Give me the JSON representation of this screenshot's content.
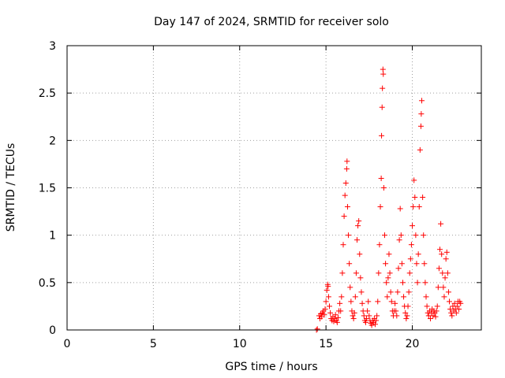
{
  "chart_data": {
    "type": "scatter",
    "title": "Day 147 of 2024, SRMTID for receiver solo",
    "xlabel": "GPS time / hours",
    "ylabel": "SRMTID / TECUs",
    "xlim": [
      0,
      24
    ],
    "ylim": [
      0,
      3
    ],
    "xticks": [
      0,
      5,
      10,
      15,
      20
    ],
    "xtick_labels": [
      "0",
      "5",
      "10",
      "15",
      "20"
    ],
    "yticks": [
      0,
      0.5,
      1,
      1.5,
      2,
      2.5,
      3
    ],
    "ytick_labels": [
      "0",
      "0.5",
      "1",
      "1.5",
      "2",
      "2.5",
      "3"
    ],
    "grid": true,
    "marker": "+",
    "color": "#ff0000",
    "series": [
      {
        "name": "SRMTID",
        "points": [
          [
            14.45,
            0.0
          ],
          [
            14.5,
            0.01
          ],
          [
            14.6,
            0.15
          ],
          [
            14.65,
            0.12
          ],
          [
            14.7,
            0.17
          ],
          [
            14.75,
            0.14
          ],
          [
            14.8,
            0.18
          ],
          [
            14.85,
            0.2
          ],
          [
            14.9,
            0.16
          ],
          [
            14.95,
            0.22
          ],
          [
            15.0,
            0.3
          ],
          [
            15.05,
            0.42
          ],
          [
            15.1,
            0.48
          ],
          [
            15.12,
            0.46
          ],
          [
            15.15,
            0.35
          ],
          [
            15.2,
            0.25
          ],
          [
            15.25,
            0.18
          ],
          [
            15.3,
            0.12
          ],
          [
            15.35,
            0.1
          ],
          [
            15.4,
            0.14
          ],
          [
            15.45,
            0.09
          ],
          [
            15.5,
            0.12
          ],
          [
            15.55,
            0.16
          ],
          [
            15.6,
            0.1
          ],
          [
            15.65,
            0.08
          ],
          [
            15.7,
            0.13
          ],
          [
            15.75,
            0.2
          ],
          [
            15.8,
            0.28
          ],
          [
            15.85,
            0.2
          ],
          [
            15.9,
            0.35
          ],
          [
            15.95,
            0.6
          ],
          [
            16.0,
            0.9
          ],
          [
            16.05,
            1.2
          ],
          [
            16.1,
            1.42
          ],
          [
            16.15,
            1.55
          ],
          [
            16.2,
            1.7
          ],
          [
            16.22,
            1.78
          ],
          [
            16.25,
            1.3
          ],
          [
            16.3,
            1.0
          ],
          [
            16.35,
            0.7
          ],
          [
            16.4,
            0.45
          ],
          [
            16.45,
            0.3
          ],
          [
            16.5,
            0.2
          ],
          [
            16.55,
            0.15
          ],
          [
            16.6,
            0.12
          ],
          [
            16.65,
            0.18
          ],
          [
            16.7,
            0.35
          ],
          [
            16.75,
            0.6
          ],
          [
            16.8,
            0.95
          ],
          [
            16.85,
            1.1
          ],
          [
            16.9,
            1.15
          ],
          [
            16.95,
            0.8
          ],
          [
            17.0,
            0.55
          ],
          [
            17.05,
            0.4
          ],
          [
            17.1,
            0.28
          ],
          [
            17.15,
            0.2
          ],
          [
            17.2,
            0.15
          ],
          [
            17.25,
            0.1
          ],
          [
            17.3,
            0.08
          ],
          [
            17.35,
            0.12
          ],
          [
            17.4,
            0.2
          ],
          [
            17.45,
            0.3
          ],
          [
            17.5,
            0.15
          ],
          [
            17.55,
            0.1
          ],
          [
            17.6,
            0.07
          ],
          [
            17.65,
            0.05
          ],
          [
            17.7,
            0.1
          ],
          [
            17.75,
            0.08
          ],
          [
            17.8,
            0.12
          ],
          [
            17.85,
            0.06
          ],
          [
            17.9,
            0.1
          ],
          [
            17.95,
            0.15
          ],
          [
            18.0,
            0.3
          ],
          [
            18.05,
            0.6
          ],
          [
            18.1,
            0.9
          ],
          [
            18.15,
            1.3
          ],
          [
            18.2,
            1.6
          ],
          [
            18.22,
            2.05
          ],
          [
            18.25,
            2.35
          ],
          [
            18.27,
            2.55
          ],
          [
            18.3,
            2.75
          ],
          [
            18.32,
            2.7
          ],
          [
            18.35,
            1.5
          ],
          [
            18.4,
            1.0
          ],
          [
            18.45,
            0.7
          ],
          [
            18.5,
            0.5
          ],
          [
            18.55,
            0.35
          ],
          [
            18.6,
            0.55
          ],
          [
            18.65,
            0.8
          ],
          [
            18.7,
            0.6
          ],
          [
            18.75,
            0.4
          ],
          [
            18.8,
            0.3
          ],
          [
            18.85,
            0.2
          ],
          [
            18.9,
            0.15
          ],
          [
            18.95,
            0.2
          ],
          [
            19.0,
            0.28
          ],
          [
            19.05,
            0.2
          ],
          [
            19.1,
            0.15
          ],
          [
            19.15,
            0.4
          ],
          [
            19.2,
            0.65
          ],
          [
            19.25,
            0.95
          ],
          [
            19.3,
            1.28
          ],
          [
            19.35,
            1.0
          ],
          [
            19.4,
            0.7
          ],
          [
            19.45,
            0.5
          ],
          [
            19.5,
            0.35
          ],
          [
            19.55,
            0.25
          ],
          [
            19.6,
            0.18
          ],
          [
            19.65,
            0.12
          ],
          [
            19.7,
            0.15
          ],
          [
            19.75,
            0.25
          ],
          [
            19.8,
            0.4
          ],
          [
            19.85,
            0.6
          ],
          [
            19.9,
            0.75
          ],
          [
            19.95,
            0.9
          ],
          [
            20.0,
            1.1
          ],
          [
            20.05,
            1.3
          ],
          [
            20.1,
            1.58
          ],
          [
            20.15,
            1.4
          ],
          [
            20.2,
            1.0
          ],
          [
            20.25,
            0.7
          ],
          [
            20.3,
            0.5
          ],
          [
            20.35,
            0.8
          ],
          [
            20.4,
            1.3
          ],
          [
            20.45,
            1.9
          ],
          [
            20.5,
            2.15
          ],
          [
            20.52,
            2.28
          ],
          [
            20.55,
            2.42
          ],
          [
            20.6,
            1.4
          ],
          [
            20.65,
            1.0
          ],
          [
            20.7,
            0.7
          ],
          [
            20.75,
            0.5
          ],
          [
            20.8,
            0.35
          ],
          [
            20.85,
            0.25
          ],
          [
            20.9,
            0.18
          ],
          [
            20.95,
            0.15
          ],
          [
            21.0,
            0.2
          ],
          [
            21.05,
            0.12
          ],
          [
            21.1,
            0.18
          ],
          [
            21.15,
            0.22
          ],
          [
            21.2,
            0.15
          ],
          [
            21.25,
            0.2
          ],
          [
            21.3,
            0.18
          ],
          [
            21.35,
            0.14
          ],
          [
            21.4,
            0.2
          ],
          [
            21.45,
            0.25
          ],
          [
            21.5,
            0.45
          ],
          [
            21.55,
            0.65
          ],
          [
            21.6,
            0.85
          ],
          [
            21.65,
            1.12
          ],
          [
            21.7,
            0.8
          ],
          [
            21.75,
            0.6
          ],
          [
            21.8,
            0.45
          ],
          [
            21.85,
            0.35
          ],
          [
            21.9,
            0.55
          ],
          [
            21.95,
            0.75
          ],
          [
            22.0,
            0.82
          ],
          [
            22.05,
            0.6
          ],
          [
            22.1,
            0.4
          ],
          [
            22.15,
            0.3
          ],
          [
            22.2,
            0.22
          ],
          [
            22.25,
            0.18
          ],
          [
            22.3,
            0.15
          ],
          [
            22.35,
            0.25
          ],
          [
            22.4,
            0.2
          ],
          [
            22.45,
            0.28
          ],
          [
            22.5,
            0.22
          ],
          [
            22.55,
            0.18
          ],
          [
            22.6,
            0.25
          ],
          [
            22.65,
            0.3
          ],
          [
            22.7,
            0.22
          ],
          [
            22.75,
            0.3
          ],
          [
            22.8,
            0.28
          ]
        ]
      }
    ]
  }
}
